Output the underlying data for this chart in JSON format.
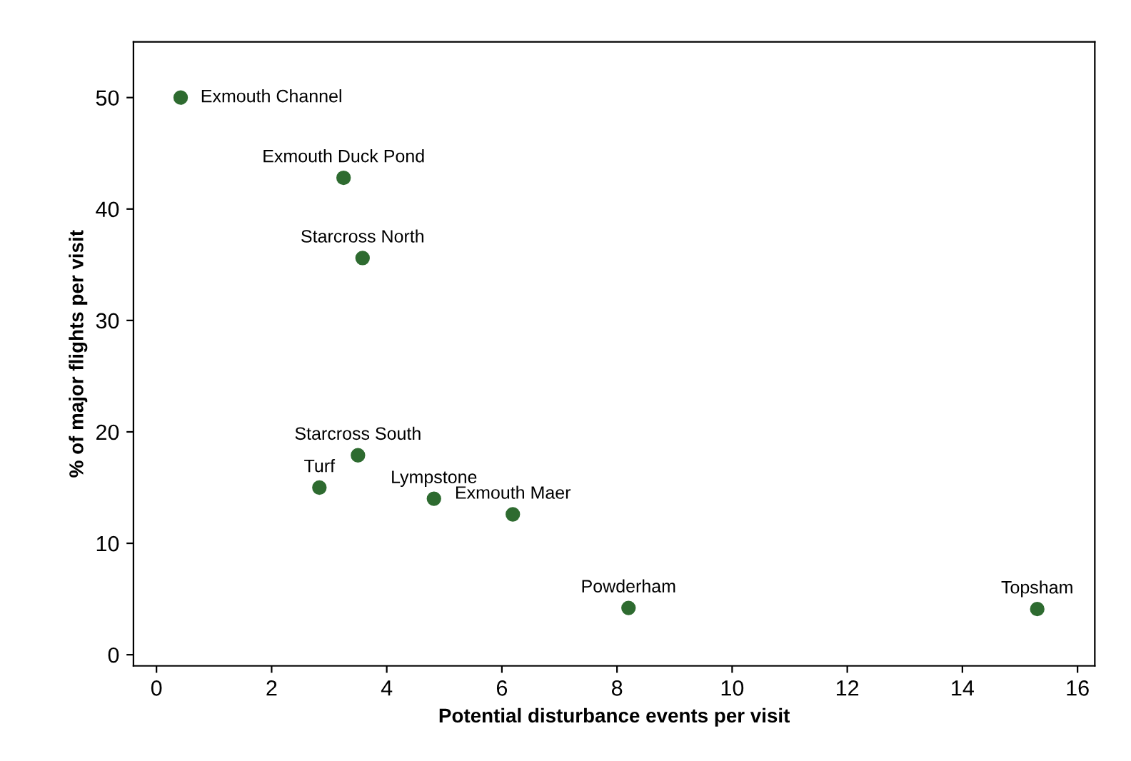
{
  "chart_data": {
    "type": "scatter",
    "xlabel": "Potential disturbance events per visit",
    "ylabel": "% of major flights per visit",
    "x": [
      0.42,
      3.25,
      3.58,
      3.5,
      2.83,
      4.82,
      6.19,
      8.2,
      15.3
    ],
    "values": [
      50,
      42.8,
      35.6,
      17.9,
      15.0,
      14.0,
      12.6,
      4.2,
      4.1
    ],
    "color": "#2e6b30",
    "marker": "circle",
    "grid": false,
    "legend": false,
    "xlim": [
      -0.4,
      16.3
    ],
    "ylim": [
      -1,
      55
    ],
    "xticks": [
      0,
      2,
      4,
      6,
      8,
      10,
      12,
      14,
      16
    ],
    "yticks": [
      0,
      10,
      20,
      30,
      40,
      50
    ],
    "annotations": [
      {
        "text": "Exmouth Channel",
        "x": 0.42,
        "y": 50
      },
      {
        "text": "Exmouth Duck Pond",
        "x": 3.25,
        "y": 42.8
      },
      {
        "text": "Starcross North",
        "x": 3.58,
        "y": 35.6
      },
      {
        "text": "Starcross South",
        "x": 3.5,
        "y": 17.9
      },
      {
        "text": "Turf",
        "x": 2.83,
        "y": 15.0
      },
      {
        "text": "Lympstone",
        "x": 4.82,
        "y": 14.0
      },
      {
        "text": "Exmouth Maer",
        "x": 6.19,
        "y": 12.6
      },
      {
        "text": "Powderham",
        "x": 8.2,
        "y": 4.2
      },
      {
        "text": "Topsham",
        "x": 15.3,
        "y": 4.1
      }
    ]
  }
}
